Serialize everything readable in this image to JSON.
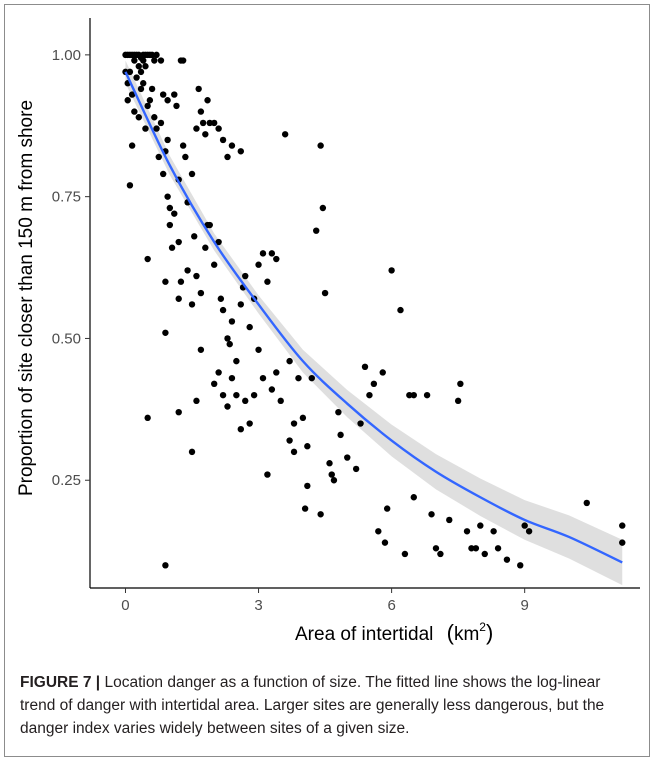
{
  "chart_data": {
    "type": "scatter",
    "xlabel": "Area of intertidal",
    "xlabel_unit": "km",
    "xlabel_unit_exp": "2",
    "ylabel": "Proportion of site closer than 150 m from shore",
    "xlim": [
      -0.8,
      11.6
    ],
    "ylim": [
      0.06,
      1.065
    ],
    "x_ticks": [
      0,
      3,
      6,
      9
    ],
    "y_ticks": [
      0.25,
      0.5,
      0.75,
      1.0
    ],
    "x_tick_labels": [
      "0",
      "3",
      "6",
      "9"
    ],
    "y_tick_labels": [
      "0.25",
      "0.50",
      "0.75",
      "1.00"
    ],
    "grid": false,
    "points": [
      [
        0.0,
        1.0
      ],
      [
        0.05,
        1.0
      ],
      [
        0.1,
        1.0
      ],
      [
        0.15,
        1.0
      ],
      [
        0.2,
        1.0
      ],
      [
        0.25,
        1.0
      ],
      [
        0.3,
        1.0
      ],
      [
        0.35,
        0.995
      ],
      [
        0.4,
        1.0
      ],
      [
        0.45,
        1.0
      ],
      [
        0.5,
        1.0
      ],
      [
        0.55,
        1.0
      ],
      [
        0.6,
        1.0
      ],
      [
        0.65,
        0.99
      ],
      [
        0.7,
        1.0
      ],
      [
        0.8,
        0.99
      ],
      [
        0.2,
        0.99
      ],
      [
        0.3,
        0.98
      ],
      [
        0.4,
        0.99
      ],
      [
        0.1,
        0.97
      ],
      [
        0.05,
        0.95
      ],
      [
        0.15,
        0.93
      ],
      [
        0.25,
        0.96
      ],
      [
        0.35,
        0.97
      ],
      [
        0.45,
        0.98
      ],
      [
        0.0,
        0.97
      ],
      [
        0.05,
        0.92
      ],
      [
        0.1,
        0.77
      ],
      [
        0.15,
        0.84
      ],
      [
        0.2,
        0.9
      ],
      [
        0.3,
        0.89
      ],
      [
        0.35,
        0.94
      ],
      [
        0.4,
        0.95
      ],
      [
        0.45,
        0.87
      ],
      [
        0.5,
        0.91
      ],
      [
        0.55,
        0.92
      ],
      [
        0.6,
        0.94
      ],
      [
        0.65,
        0.89
      ],
      [
        0.7,
        0.87
      ],
      [
        0.75,
        0.82
      ],
      [
        0.8,
        0.88
      ],
      [
        0.85,
        0.79
      ],
      [
        0.9,
        0.83
      ],
      [
        0.95,
        0.75
      ],
      [
        1.0,
        0.73
      ],
      [
        0.85,
        0.93
      ],
      [
        0.95,
        0.92
      ],
      [
        1.1,
        0.93
      ],
      [
        1.15,
        0.91
      ],
      [
        1.25,
        0.99
      ],
      [
        1.3,
        0.99
      ],
      [
        1.2,
        0.78
      ],
      [
        1.3,
        0.84
      ],
      [
        1.35,
        0.82
      ],
      [
        1.4,
        0.74
      ],
      [
        1.5,
        0.79
      ],
      [
        1.55,
        0.68
      ],
      [
        1.6,
        0.87
      ],
      [
        1.65,
        0.94
      ],
      [
        1.7,
        0.9
      ],
      [
        1.75,
        0.88
      ],
      [
        1.8,
        0.86
      ],
      [
        1.85,
        0.92
      ],
      [
        1.9,
        0.88
      ],
      [
        2.0,
        0.88
      ],
      [
        2.1,
        0.87
      ],
      [
        2.2,
        0.85
      ],
      [
        2.3,
        0.82
      ],
      [
        2.4,
        0.84
      ],
      [
        2.6,
        0.83
      ],
      [
        0.95,
        0.85
      ],
      [
        1.0,
        0.7
      ],
      [
        1.05,
        0.66
      ],
      [
        1.1,
        0.72
      ],
      [
        1.2,
        0.67
      ],
      [
        1.25,
        0.6
      ],
      [
        1.4,
        0.62
      ],
      [
        1.5,
        0.56
      ],
      [
        1.6,
        0.61
      ],
      [
        1.7,
        0.58
      ],
      [
        1.8,
        0.66
      ],
      [
        1.85,
        0.7
      ],
      [
        1.9,
        0.7
      ],
      [
        2.0,
        0.63
      ],
      [
        2.1,
        0.67
      ],
      [
        2.15,
        0.57
      ],
      [
        2.2,
        0.55
      ],
      [
        2.3,
        0.5
      ],
      [
        2.35,
        0.49
      ],
      [
        2.4,
        0.53
      ],
      [
        2.5,
        0.46
      ],
      [
        2.6,
        0.56
      ],
      [
        2.65,
        0.59
      ],
      [
        2.7,
        0.61
      ],
      [
        2.8,
        0.52
      ],
      [
        2.9,
        0.57
      ],
      [
        3.0,
        0.63
      ],
      [
        3.1,
        0.65
      ],
      [
        3.2,
        0.6
      ],
      [
        3.3,
        0.65
      ],
      [
        3.4,
        0.64
      ],
      [
        0.5,
        0.64
      ],
      [
        0.9,
        0.6
      ],
      [
        0.9,
        0.51
      ],
      [
        1.2,
        0.57
      ],
      [
        1.6,
        0.39
      ],
      [
        1.7,
        0.48
      ],
      [
        2.0,
        0.42
      ],
      [
        2.1,
        0.44
      ],
      [
        2.2,
        0.4
      ],
      [
        2.3,
        0.38
      ],
      [
        2.4,
        0.43
      ],
      [
        2.5,
        0.4
      ],
      [
        2.6,
        0.34
      ],
      [
        2.7,
        0.39
      ],
      [
        2.8,
        0.35
      ],
      [
        2.9,
        0.4
      ],
      [
        3.0,
        0.48
      ],
      [
        3.1,
        0.43
      ],
      [
        3.2,
        0.26
      ],
      [
        3.3,
        0.41
      ],
      [
        3.4,
        0.44
      ],
      [
        3.5,
        0.39
      ],
      [
        3.6,
        0.86
      ],
      [
        3.7,
        0.46
      ],
      [
        3.8,
        0.35
      ],
      [
        3.9,
        0.43
      ],
      [
        4.0,
        0.36
      ],
      [
        4.05,
        0.2
      ],
      [
        4.1,
        0.31
      ],
      [
        4.2,
        0.43
      ],
      [
        4.3,
        0.69
      ],
      [
        4.4,
        0.84
      ],
      [
        4.45,
        0.73
      ],
      [
        4.5,
        0.58
      ],
      [
        4.6,
        0.28
      ],
      [
        4.65,
        0.26
      ],
      [
        4.7,
        0.25
      ],
      [
        4.8,
        0.37
      ],
      [
        4.85,
        0.33
      ],
      [
        5.0,
        0.29
      ],
      [
        5.2,
        0.27
      ],
      [
        5.3,
        0.35
      ],
      [
        5.4,
        0.45
      ],
      [
        5.5,
        0.4
      ],
      [
        5.6,
        0.42
      ],
      [
        5.7,
        0.16
      ],
      [
        5.8,
        0.44
      ],
      [
        5.85,
        0.14
      ],
      [
        5.9,
        0.2
      ],
      [
        0.5,
        0.36
      ],
      [
        0.9,
        0.1
      ],
      [
        1.2,
        0.37
      ],
      [
        1.5,
        0.3
      ],
      [
        3.7,
        0.32
      ],
      [
        3.8,
        0.3
      ],
      [
        4.1,
        0.24
      ],
      [
        4.4,
        0.19
      ],
      [
        6.0,
        0.62
      ],
      [
        6.2,
        0.55
      ],
      [
        6.4,
        0.4
      ],
      [
        6.5,
        0.4
      ],
      [
        6.3,
        0.12
      ],
      [
        6.5,
        0.22
      ],
      [
        6.8,
        0.4
      ],
      [
        6.9,
        0.19
      ],
      [
        7.0,
        0.13
      ],
      [
        7.1,
        0.12
      ],
      [
        7.3,
        0.18
      ],
      [
        7.5,
        0.39
      ],
      [
        7.55,
        0.42
      ],
      [
        7.7,
        0.16
      ],
      [
        7.8,
        0.13
      ],
      [
        7.9,
        0.13
      ],
      [
        8.0,
        0.17
      ],
      [
        8.1,
        0.12
      ],
      [
        8.3,
        0.16
      ],
      [
        8.4,
        0.13
      ],
      [
        8.6,
        0.11
      ],
      [
        8.9,
        0.1
      ],
      [
        9.0,
        0.17
      ],
      [
        9.1,
        0.16
      ],
      [
        10.4,
        0.21
      ],
      [
        11.2,
        0.17
      ],
      [
        11.2,
        0.14
      ]
    ],
    "fit": {
      "type": "log-linear",
      "x": [
        0,
        1,
        2,
        3,
        4,
        5,
        6,
        7,
        8,
        9,
        10,
        11.2
      ],
      "y": [
        0.97,
        0.805,
        0.67,
        0.56,
        0.46,
        0.385,
        0.32,
        0.265,
        0.22,
        0.18,
        0.15,
        0.105
      ],
      "ci_halfwidth": [
        0.02,
        0.017,
        0.015,
        0.016,
        0.02,
        0.024,
        0.028,
        0.031,
        0.033,
        0.035,
        0.038,
        0.04
      ]
    },
    "colors": {
      "points": "#000000",
      "fit_line": "#3366ff",
      "ci_band": "#d9d9d9",
      "axis": "#000000",
      "tick_text": "#4d4d4d"
    }
  },
  "caption": {
    "label": "FIGURE 7 |",
    "text": "Location danger as a function of size. The fitted line shows the log-linear trend of danger with intertidal area. Larger sites are generally less dangerous, but the danger index varies widely between sites of a given size."
  }
}
